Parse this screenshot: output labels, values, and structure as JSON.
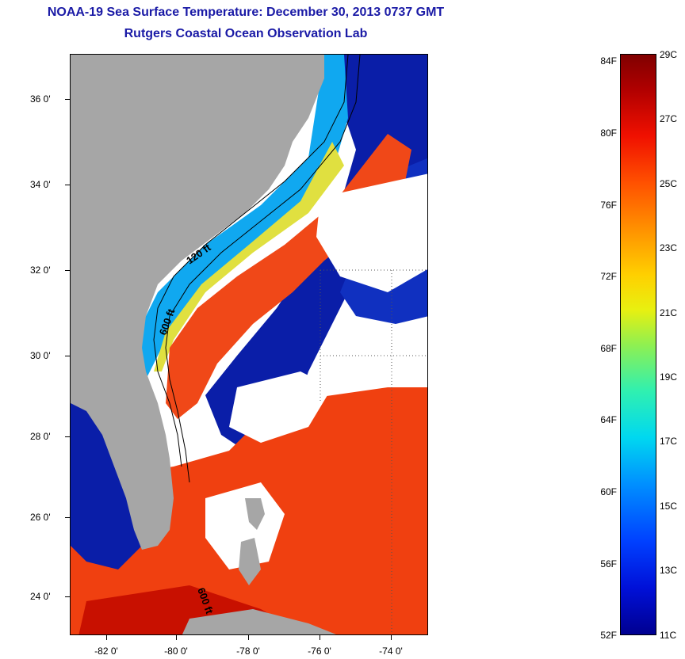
{
  "title": {
    "line1": "NOAA-19 Sea Surface Temperature:  December 30, 2013 0737 GMT",
    "line2": "Rutgers Coastal Ocean Observation Lab"
  },
  "map": {
    "lat_labels": [
      "36 0'",
      "34 0'",
      "32 0'",
      "30 0'",
      "28 0'",
      "26 0'",
      "24 0'"
    ],
    "lon_labels": [
      "-82 0'",
      "-80 0'",
      "-78 0'",
      "-76 0'",
      "-74 0'"
    ],
    "contour_labels": [
      "120 ft",
      "600 ft",
      "600 ft"
    ],
    "colors": {
      "land": "#a6a6a6",
      "cloud": "#ffffff",
      "cold": "#0a1ea8",
      "warm": "#f04010"
    }
  },
  "colorbar": {
    "fahrenheit_labels": [
      "84F",
      "80F",
      "76F",
      "72F",
      "68F",
      "64F",
      "60F",
      "56F",
      "52F"
    ],
    "celsius_labels": [
      "29C",
      "27C",
      "25C",
      "23C",
      "21C",
      "19C",
      "17C",
      "15C",
      "13C",
      "11C"
    ],
    "min_c": 11,
    "max_c": 29
  }
}
